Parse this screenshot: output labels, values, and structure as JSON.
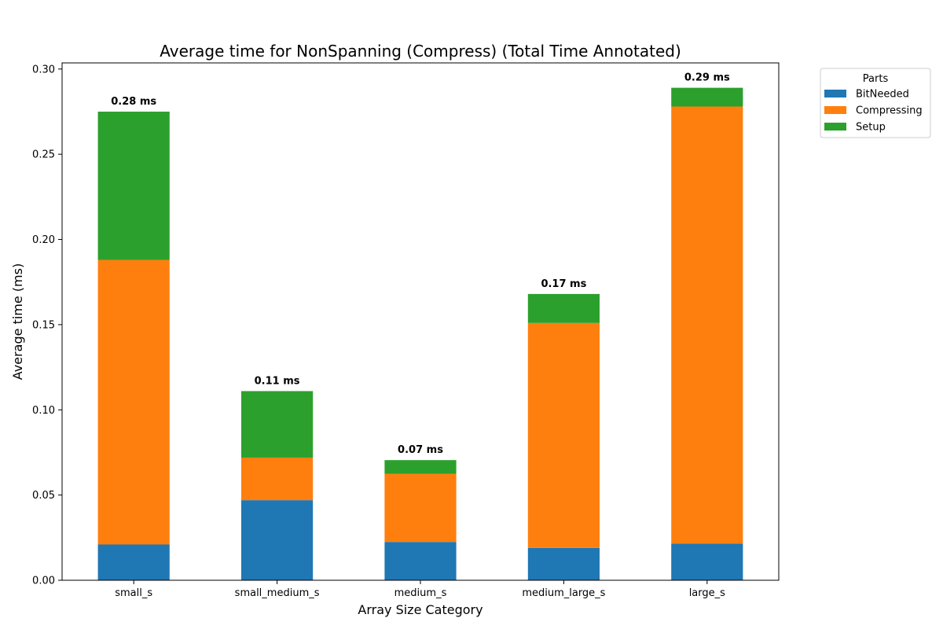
{
  "chart_data": {
    "type": "bar",
    "stacked": true,
    "title": "Average time for NonSpanning (Compress) (Total Time Annotated)",
    "xlabel": "Array Size Category",
    "ylabel": "Average time (ms)",
    "ylim": [
      0,
      0.3
    ],
    "yticks": [
      0.0,
      0.05,
      0.1,
      0.15,
      0.2,
      0.25,
      0.3
    ],
    "ytick_labels": [
      "0.00",
      "0.05",
      "0.10",
      "0.15",
      "0.20",
      "0.25",
      "0.30"
    ],
    "categories": [
      "small_s",
      "small_medium_s",
      "medium_s",
      "medium_large_s",
      "large_s"
    ],
    "series": [
      {
        "name": "BitNeeded",
        "color": "#1f77b4",
        "values": [
          0.021,
          0.047,
          0.0225,
          0.019,
          0.0215
        ]
      },
      {
        "name": "Compressing",
        "color": "#ff7f0e",
        "values": [
          0.167,
          0.025,
          0.04,
          0.132,
          0.2565
        ]
      },
      {
        "name": "Setup",
        "color": "#2ca02c",
        "values": [
          0.087,
          0.039,
          0.008,
          0.017,
          0.011
        ]
      }
    ],
    "total_labels": [
      "0.28 ms",
      "0.11 ms",
      "0.07 ms",
      "0.17 ms",
      "0.29 ms"
    ],
    "legend": {
      "title": "Parts",
      "placement": "outside-top-right"
    },
    "grid": false
  }
}
